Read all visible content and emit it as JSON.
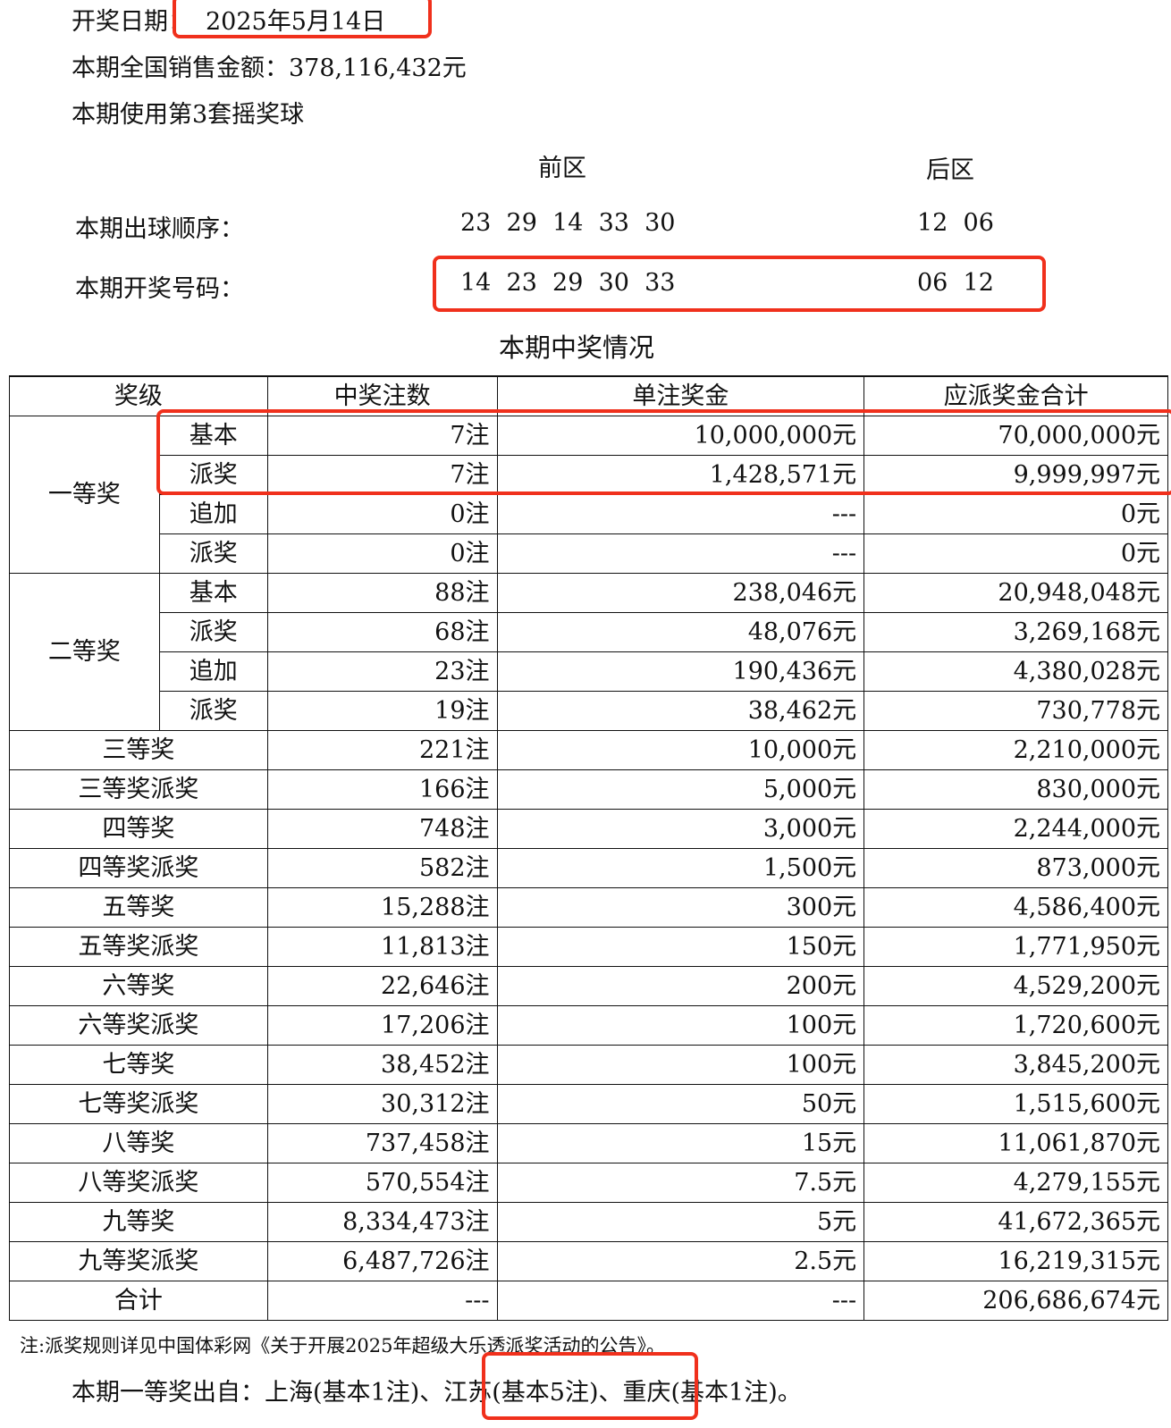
{
  "draw_date": {
    "label": "开奖日期：",
    "value": "2025年5月14日"
  },
  "sales": "本期全国销售金额：378,116,432元",
  "ball_set": "本期使用第3套摇奖球",
  "zones": {
    "front": "前区",
    "back": "后区"
  },
  "draw_order": {
    "label": "本期出球顺序：",
    "front": "23  29  14  33  30",
    "back": "12  06"
  },
  "winning_numbers": {
    "label": "本期开奖号码：",
    "front": "14  23  29  30  33",
    "back": "06  12"
  },
  "section_title": "本期中奖情况",
  "table": {
    "headers": [
      "奖级",
      "中奖注数",
      "单注奖金",
      "应派奖金合计"
    ],
    "groups": [
      {
        "level": "一等奖",
        "rows": [
          [
            "基本",
            "7注",
            "10,000,000元",
            "70,000,000元"
          ],
          [
            "派奖",
            "7注",
            "1,428,571元",
            "9,999,997元"
          ],
          [
            "追加",
            "0注",
            "---",
            "0元"
          ],
          [
            "派奖",
            "0注",
            "---",
            "0元"
          ]
        ]
      },
      {
        "level": "二等奖",
        "rows": [
          [
            "基本",
            "88注",
            "238,046元",
            "20,948,048元"
          ],
          [
            "派奖",
            "68注",
            "48,076元",
            "3,269,168元"
          ],
          [
            "追加",
            "23注",
            "190,436元",
            "4,380,028元"
          ],
          [
            "派奖",
            "19注",
            "38,462元",
            "730,778元"
          ]
        ]
      }
    ],
    "rows": [
      [
        "三等奖",
        "221注",
        "10,000元",
        "2,210,000元"
      ],
      [
        "三等奖派奖",
        "166注",
        "5,000元",
        "830,000元"
      ],
      [
        "四等奖",
        "748注",
        "3,000元",
        "2,244,000元"
      ],
      [
        "四等奖派奖",
        "582注",
        "1,500元",
        "873,000元"
      ],
      [
        "五等奖",
        "15,288注",
        "300元",
        "4,586,400元"
      ],
      [
        "五等奖派奖",
        "11,813注",
        "150元",
        "1,771,950元"
      ],
      [
        "六等奖",
        "22,646注",
        "200元",
        "4,529,200元"
      ],
      [
        "六等奖派奖",
        "17,206注",
        "100元",
        "1,720,600元"
      ],
      [
        "七等奖",
        "38,452注",
        "100元",
        "3,845,200元"
      ],
      [
        "七等奖派奖",
        "30,312注",
        "50元",
        "1,515,600元"
      ],
      [
        "八等奖",
        "737,458注",
        "15元",
        "11,061,870元"
      ],
      [
        "八等奖派奖",
        "570,554注",
        "7.5元",
        "4,279,155元"
      ],
      [
        "九等奖",
        "8,334,473注",
        "5元",
        "41,672,365元"
      ],
      [
        "九等奖派奖",
        "6,487,726注",
        "2.5元",
        "16,219,315元"
      ],
      [
        "合计",
        "---",
        "---",
        "206,686,674元"
      ]
    ]
  },
  "note": "注:派奖规则详见中国体彩网《关于开展2025年超级大乐透派奖活动的公告》。",
  "first_prize_origin": "本期一等奖出自：上海(基本1注)、江苏(基本5注)、重庆(基本1注)。",
  "highlight_color": "#f0301c"
}
